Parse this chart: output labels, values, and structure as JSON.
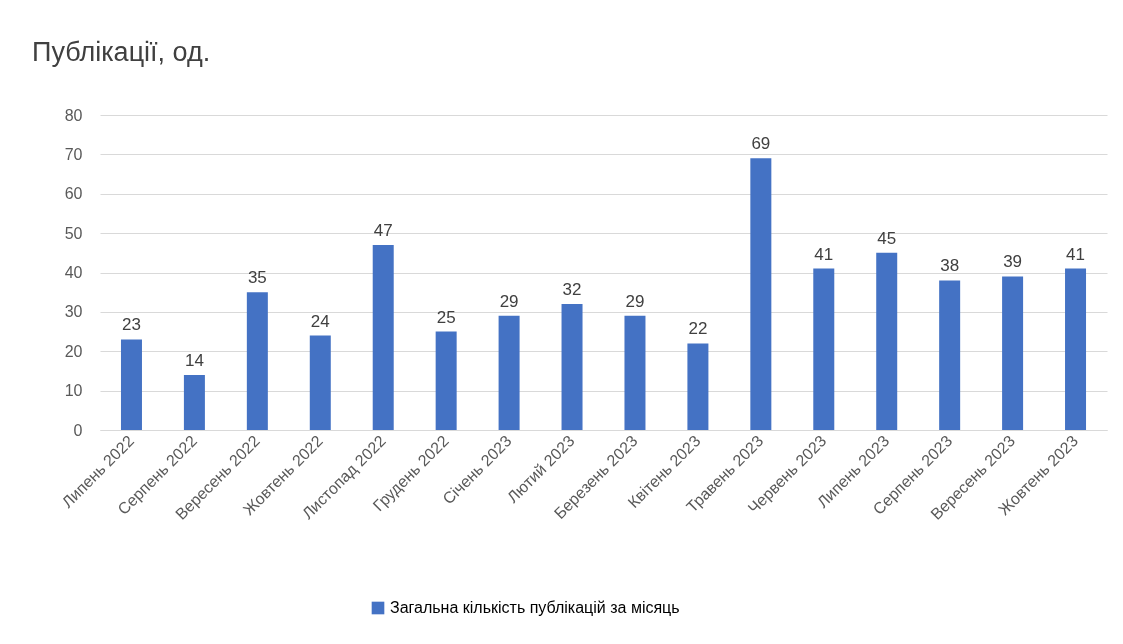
{
  "chart_data": {
    "type": "bar",
    "title": "Публікації, од.",
    "categories": [
      "Липень 2022",
      "Серпень 2022",
      "Вересень 2022",
      "Жовтень 2022",
      "Листопад 2022",
      "Грудень 2022",
      "Січень 2023",
      "Лютий 2023",
      "Березень 2023",
      "Квітень 2023",
      "Травень 2023",
      "Червень 2023",
      "Липень 2023",
      "Серпень 2023",
      "Вересень 2023",
      "Жовтень 2023"
    ],
    "series": [
      {
        "name": "Загальна кількість публікацій за місяць",
        "color": "#4472c4",
        "values": [
          23,
          14,
          35,
          24,
          47,
          25,
          29,
          32,
          29,
          22,
          69,
          41,
          45,
          38,
          39,
          41
        ]
      }
    ],
    "ylim": [
      0,
      80
    ],
    "yticks": [
      0,
      10,
      20,
      30,
      40,
      50,
      60,
      70,
      80
    ],
    "grid": "y",
    "legend": "bottom",
    "data_labels": true
  }
}
